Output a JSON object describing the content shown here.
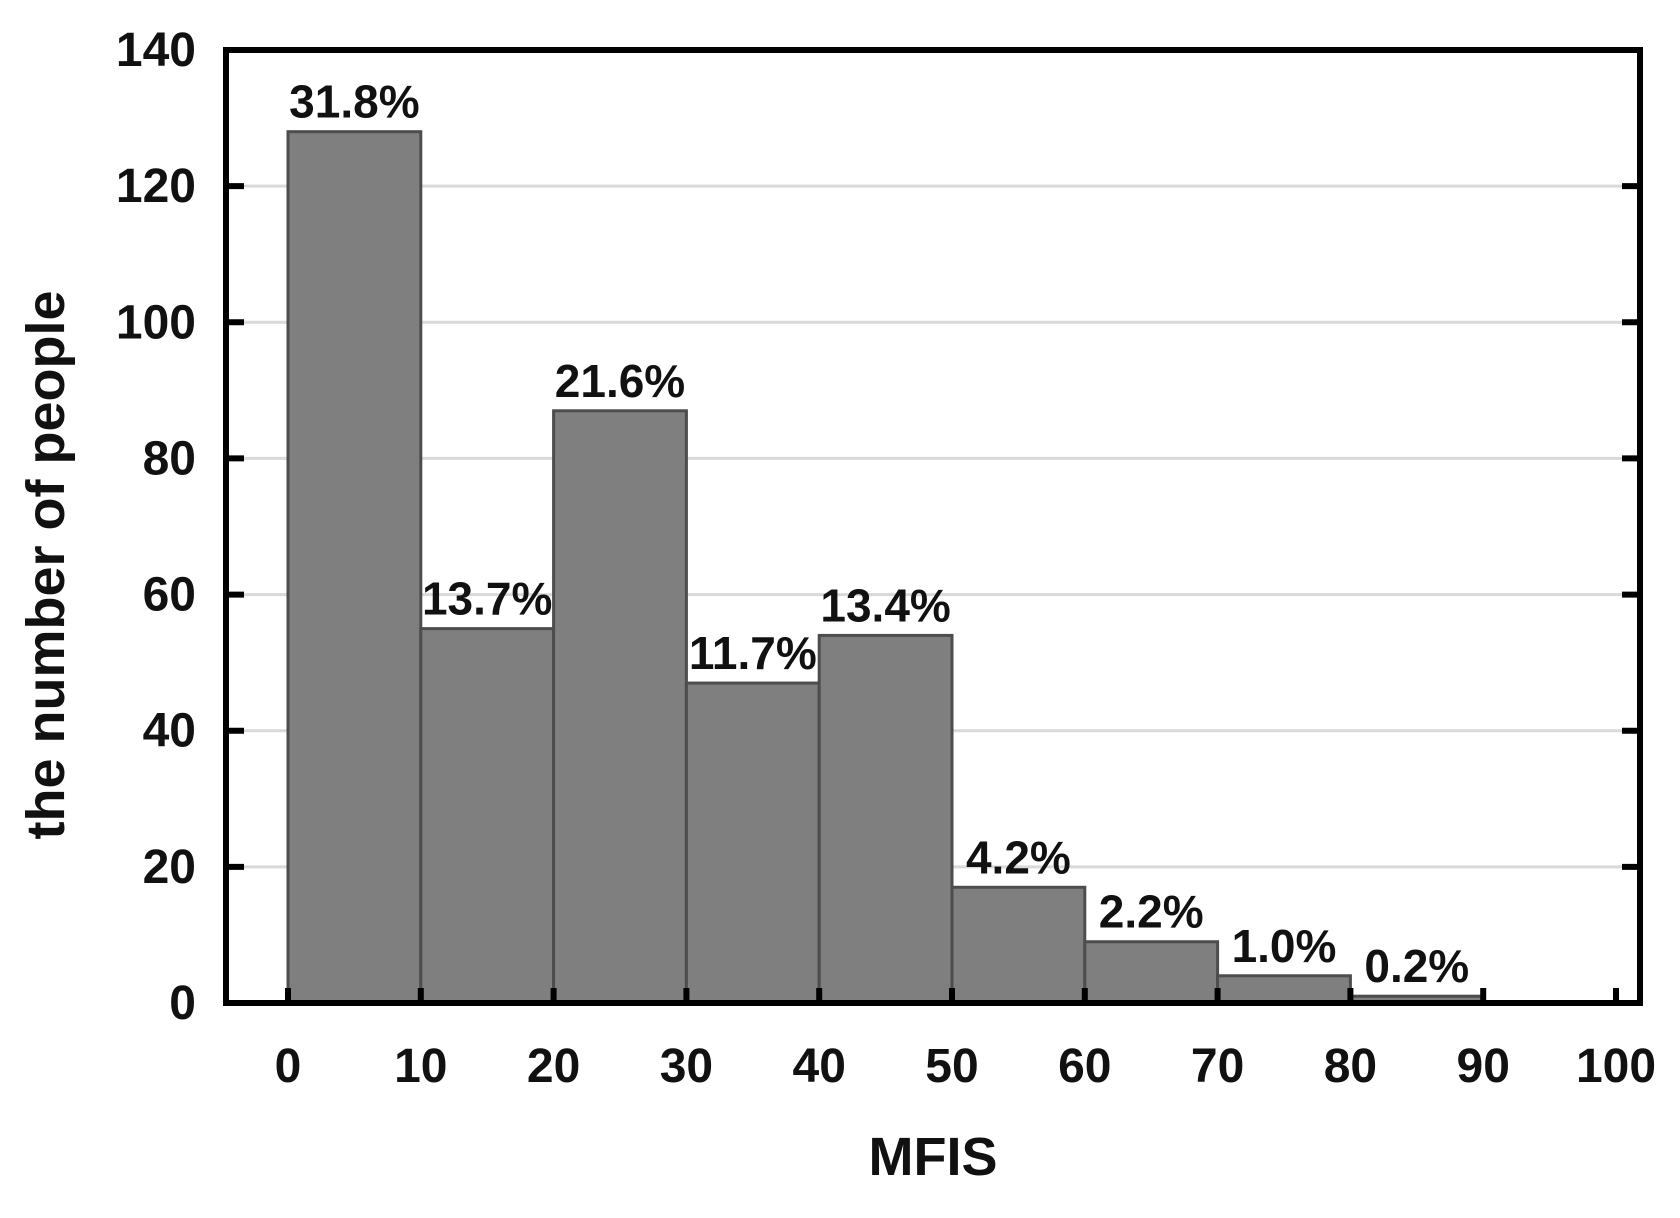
{
  "chart_data": {
    "type": "bar",
    "subtype": "histogram",
    "title": "",
    "xlabel": "MFIS",
    "ylabel": "the number of people",
    "bins": [
      [
        0,
        10
      ],
      [
        10,
        20
      ],
      [
        20,
        30
      ],
      [
        30,
        40
      ],
      [
        40,
        50
      ],
      [
        50,
        60
      ],
      [
        60,
        70
      ],
      [
        70,
        80
      ],
      [
        80,
        90
      ]
    ],
    "categories": [
      "0-10",
      "10-20",
      "20-30",
      "30-40",
      "40-50",
      "50-60",
      "60-70",
      "70-80",
      "80-90"
    ],
    "values": [
      128,
      55,
      87,
      47,
      54,
      17,
      9,
      4,
      1
    ],
    "bar_labels": [
      "31.8%",
      "13.7%",
      "21.6%",
      "11.7%",
      "13.4%",
      "4.2%",
      "2.2%",
      "1.0%",
      "0.2%"
    ],
    "xticks": [
      0,
      10,
      20,
      30,
      40,
      50,
      60,
      70,
      80,
      90,
      100
    ],
    "yticks": [
      0,
      20,
      40,
      60,
      80,
      100,
      120,
      140
    ],
    "ylim": [
      0,
      140
    ],
    "xlim": [
      -4.7,
      101.8
    ],
    "grid": "horizontal",
    "legend": "none",
    "colors": {
      "bar_fill": "#7f7f7f",
      "bar_border": "#4d4d4d",
      "grid": "#d9d9d9",
      "frame": "#000000",
      "text": "#111111",
      "background": "#ffffff"
    }
  }
}
